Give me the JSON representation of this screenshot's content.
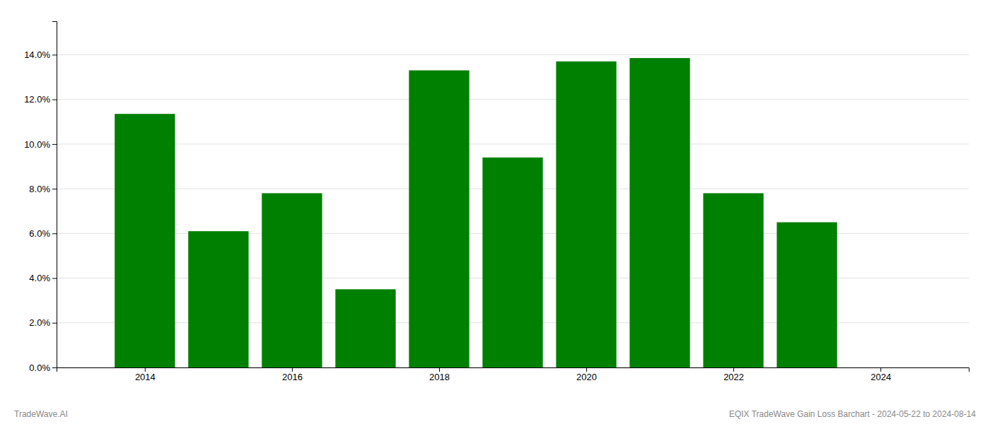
{
  "chart_data": {
    "type": "bar",
    "x": [
      2014,
      2015,
      2016,
      2017,
      2018,
      2019,
      2020,
      2021,
      2022,
      2023
    ],
    "values": [
      0.1135,
      0.061,
      0.078,
      0.035,
      0.133,
      0.094,
      0.137,
      0.1385,
      0.078,
      0.065
    ],
    "color": "#008000",
    "xlim": [
      2012.8,
      2025.2
    ],
    "xticks": [
      2014,
      2016,
      2018,
      2020,
      2022,
      2024
    ],
    "ylim": [
      0,
      0.155
    ],
    "yticks": [
      {
        "value": 0,
        "label": "0.0%"
      },
      {
        "value": 0.02,
        "label": "2.0%"
      },
      {
        "value": 0.04,
        "label": "4.0%"
      },
      {
        "value": 0.06,
        "label": "6.0%"
      },
      {
        "value": 0.08,
        "label": "8.0%"
      },
      {
        "value": 0.1,
        "label": "10.0%"
      },
      {
        "value": 0.12,
        "label": "12.0%"
      },
      {
        "value": 0.14,
        "label": "14.0%"
      }
    ],
    "grid": true,
    "annotations": [
      "TradeWave.AI",
      "EQIX TradeWave Gain Loss Barchart - 2024-05-22 to 2024-08-14"
    ]
  }
}
